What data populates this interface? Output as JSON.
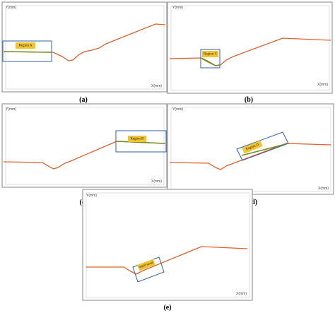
{
  "panels": [
    {
      "caption": "(a)",
      "y_label": "Y(mm)",
      "x_label": "X(mm)",
      "region_label": "Region A"
    },
    {
      "caption": "(b)",
      "y_label": "Y(mm)",
      "x_label": "X(mm)",
      "region_label": "Region C"
    },
    {
      "caption": "(c)",
      "y_label": "Y(mm)",
      "x_label": "X(mm)",
      "region_label": "Region B"
    },
    {
      "caption": "(d)",
      "y_label": "Y(mm)",
      "x_label": "X(mm)",
      "region_label": "Region D"
    },
    {
      "caption": "(e)",
      "y_label": "Y(mm)",
      "x_label": "X(mm)",
      "region_label": "Weld seam"
    }
  ]
}
